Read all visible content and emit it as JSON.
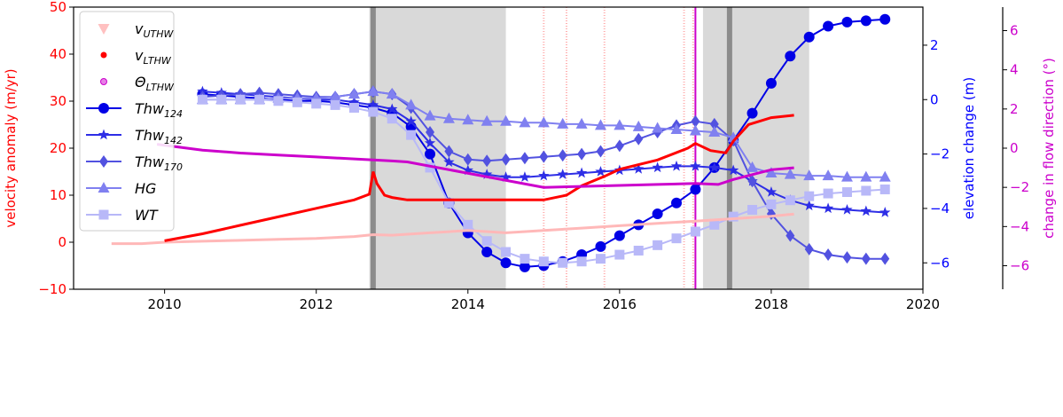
{
  "chart_data": {
    "type": "line",
    "x_axis": {
      "range": [
        2008.8,
        2020.0
      ],
      "ticks": [
        "2010",
        "2012",
        "2014",
        "2016",
        "2018",
        "2020"
      ],
      "tick_values": [
        2010,
        2012,
        2014,
        2016,
        2018,
        2020
      ]
    },
    "y_axis_left": {
      "label": "velocity anomaly (m/yr)",
      "range": [
        -10,
        50
      ],
      "ticks": [
        "−10",
        "0",
        "10",
        "20",
        "30",
        "40",
        "50"
      ],
      "tick_values": [
        -10,
        0,
        10,
        20,
        30,
        40,
        50
      ],
      "color": "#ff0000"
    },
    "y_axis_right1": {
      "label": "elevation change (m)",
      "range": [
        -6.97,
        3.4
      ],
      "ticks": [
        "−6",
        "−4",
        "−2",
        "0",
        "2"
      ],
      "tick_values": [
        -6,
        -4,
        -2,
        0,
        2
      ],
      "color": "#0000ff"
    },
    "y_axis_right2": {
      "label": "change in flow direction (°)",
      "range": [
        -7.2,
        7.2
      ],
      "ticks": [
        "−6",
        "−4",
        "−2",
        "0",
        "2",
        "4",
        "6"
      ],
      "tick_values": [
        -6,
        -4,
        -2,
        0,
        2,
        4,
        6
      ],
      "color": "#cc00cc"
    },
    "shaded_periods": [
      [
        2012.7,
        2014.5
      ],
      [
        2017.1,
        2018.5
      ]
    ],
    "dark_lines": [
      2012.75,
      2017.45
    ],
    "pink_spikes": [
      2015.0,
      2015.3,
      2015.8,
      2016.85,
      2016.97
    ],
    "magenta_spike": 2017.0,
    "legend": {
      "position": "upper left",
      "entries": [
        {
          "label": "v",
          "sub": "UTHW",
          "marker": "tri-down",
          "color": "#ffc0c0"
        },
        {
          "label": "v",
          "sub": "LTHW",
          "marker": "dot",
          "color": "#ff0000"
        },
        {
          "label": "Θ",
          "sub": "LTHW",
          "marker": "open-dot",
          "color": "#cc00cc"
        },
        {
          "label": "Thw",
          "sub": "124",
          "marker": "circle",
          "color": "#0000e6"
        },
        {
          "label": "Thw",
          "sub": "142",
          "marker": "star",
          "color": "#2e2ee6"
        },
        {
          "label": "Thw",
          "sub": "170",
          "marker": "diamond",
          "color": "#5252e0"
        },
        {
          "label": "HG",
          "sub": "",
          "marker": "triangle",
          "color": "#8080f0"
        },
        {
          "label": "WT",
          "sub": "",
          "marker": "square",
          "color": "#b8b8f8"
        }
      ]
    },
    "series": [
      {
        "name": "Thw124",
        "axis": "elevation",
        "color": "#0000e6",
        "marker": "circle",
        "x": [
          2010.5,
          2010.75,
          2011.0,
          2011.25,
          2011.5,
          2011.75,
          2012.0,
          2012.25,
          2012.5,
          2012.75,
          2013.0,
          2013.25,
          2013.5,
          2013.75,
          2014.0,
          2014.25,
          2014.5,
          2014.75,
          2015.0,
          2015.25,
          2015.5,
          2015.75,
          2016.0,
          2016.25,
          2016.5,
          2016.75,
          2017.0,
          2017.25,
          2017.5,
          2017.75,
          2018.0,
          2018.25,
          2018.5,
          2018.75,
          2019.0,
          2019.25,
          2019.5
        ],
        "y": [
          0.2,
          0.15,
          0.1,
          0.05,
          0.0,
          -0.05,
          -0.05,
          -0.1,
          -0.2,
          -0.3,
          -0.5,
          -1.0,
          -2.0,
          -3.8,
          -4.9,
          -5.6,
          -6.0,
          -6.15,
          -6.1,
          -5.95,
          -5.7,
          -5.4,
          -5.0,
          -4.6,
          -4.2,
          -3.8,
          -3.3,
          -2.5,
          -1.5,
          -0.5,
          0.6,
          1.6,
          2.3,
          2.7,
          2.85,
          2.9,
          2.95
        ]
      },
      {
        "name": "Thw142",
        "axis": "elevation",
        "color": "#2e2ee6",
        "marker": "star",
        "x": [
          2010.5,
          2010.75,
          2011.0,
          2011.25,
          2011.5,
          2011.75,
          2012.0,
          2012.25,
          2012.5,
          2012.75,
          2013.0,
          2013.25,
          2013.5,
          2013.75,
          2014.0,
          2014.25,
          2014.5,
          2014.75,
          2015.0,
          2015.25,
          2015.5,
          2015.75,
          2016.0,
          2016.25,
          2016.5,
          2016.75,
          2017.0,
          2017.25,
          2017.5,
          2017.75,
          2018.0,
          2018.25,
          2018.5,
          2018.75,
          2019.0,
          2019.25,
          2019.5
        ],
        "y": [
          0.3,
          0.25,
          0.2,
          0.15,
          0.1,
          0.05,
          0.0,
          0.0,
          -0.1,
          -0.2,
          -0.35,
          -0.8,
          -1.6,
          -2.3,
          -2.6,
          -2.75,
          -2.85,
          -2.85,
          -2.8,
          -2.75,
          -2.7,
          -2.65,
          -2.6,
          -2.55,
          -2.5,
          -2.45,
          -2.45,
          -2.5,
          -2.6,
          -3.0,
          -3.4,
          -3.7,
          -3.9,
          -4.0,
          -4.05,
          -4.1,
          -4.15
        ]
      },
      {
        "name": "Thw170",
        "axis": "elevation",
        "color": "#5252e0",
        "marker": "diamond",
        "x": [
          2010.5,
          2010.75,
          2011.0,
          2011.25,
          2011.5,
          2011.75,
          2012.0,
          2012.25,
          2012.5,
          2012.75,
          2013.0,
          2013.25,
          2013.5,
          2013.75,
          2014.0,
          2014.25,
          2014.5,
          2014.75,
          2015.0,
          2015.25,
          2015.5,
          2015.75,
          2016.0,
          2016.25,
          2016.5,
          2016.75,
          2017.0,
          2017.25,
          2017.5,
          2017.75,
          2018.0,
          2018.25,
          2018.5,
          2018.75,
          2019.0,
          2019.25,
          2019.5
        ],
        "y": [
          0.1,
          0.15,
          0.2,
          0.25,
          0.2,
          0.15,
          0.1,
          0.1,
          0.2,
          0.3,
          0.2,
          -0.3,
          -1.2,
          -1.9,
          -2.2,
          -2.25,
          -2.2,
          -2.15,
          -2.1,
          -2.05,
          -2.0,
          -1.9,
          -1.7,
          -1.45,
          -1.2,
          -0.95,
          -0.8,
          -0.9,
          -1.5,
          -3.0,
          -4.2,
          -5.0,
          -5.5,
          -5.7,
          -5.8,
          -5.85,
          -5.85
        ]
      },
      {
        "name": "HG",
        "axis": "elevation",
        "color": "#8080f0",
        "marker": "triangle",
        "x": [
          2010.5,
          2010.75,
          2011.0,
          2011.25,
          2011.5,
          2011.75,
          2012.0,
          2012.25,
          2012.5,
          2012.75,
          2013.0,
          2013.25,
          2013.5,
          2013.75,
          2014.0,
          2014.25,
          2014.5,
          2014.75,
          2015.0,
          2015.25,
          2015.5,
          2015.75,
          2016.0,
          2016.25,
          2016.5,
          2016.75,
          2017.0,
          2017.25,
          2017.5,
          2017.75,
          2018.0,
          2018.25,
          2018.5,
          2018.75,
          2019.0,
          2019.25,
          2019.5
        ],
        "y": [
          0.0,
          0.0,
          0.0,
          0.0,
          0.05,
          0.05,
          0.05,
          0.1,
          0.2,
          0.3,
          0.2,
          -0.2,
          -0.6,
          -0.7,
          -0.75,
          -0.8,
          -0.8,
          -0.85,
          -0.85,
          -0.9,
          -0.9,
          -0.95,
          -0.95,
          -1.0,
          -1.05,
          -1.1,
          -1.15,
          -1.2,
          -1.4,
          -2.5,
          -2.7,
          -2.75,
          -2.8,
          -2.8,
          -2.85,
          -2.85,
          -2.85
        ]
      },
      {
        "name": "WT",
        "axis": "elevation",
        "color": "#b8b8f8",
        "marker": "square",
        "x": [
          2010.5,
          2010.75,
          2011.0,
          2011.25,
          2011.5,
          2011.75,
          2012.0,
          2012.25,
          2012.5,
          2012.75,
          2013.0,
          2013.25,
          2013.5,
          2013.75,
          2014.0,
          2014.25,
          2014.5,
          2014.75,
          2015.0,
          2015.25,
          2015.5,
          2015.75,
          2016.0,
          2016.25,
          2016.5,
          2016.75,
          2017.0,
          2017.25,
          2017.5,
          2017.75,
          2018.0,
          2018.25,
          2018.5,
          2018.75,
          2019.0,
          2019.25,
          2019.5
        ],
        "y": [
          0.0,
          0.0,
          0.0,
          0.0,
          -0.05,
          -0.1,
          -0.15,
          -0.2,
          -0.3,
          -0.45,
          -0.7,
          -1.3,
          -2.5,
          -3.8,
          -4.6,
          -5.2,
          -5.6,
          -5.85,
          -5.95,
          -6.0,
          -5.95,
          -5.85,
          -5.7,
          -5.55,
          -5.35,
          -5.1,
          -4.85,
          -4.6,
          -4.3,
          -4.05,
          -3.85,
          -3.7,
          -3.55,
          -3.45,
          -3.4,
          -3.35,
          -3.3
        ]
      },
      {
        "name": "vUTHW",
        "axis": "velocity",
        "color": "#ffb8b8",
        "x": [
          2009.3,
          2009.7,
          2010.0,
          2010.5,
          2011.0,
          2011.5,
          2012.0,
          2012.5,
          2012.75,
          2013.0,
          2013.5,
          2014.0,
          2014.5,
          2015.0,
          2015.5,
          2016.0,
          2016.5,
          2017.0,
          2017.5,
          2018.0,
          2018.3
        ],
        "y": [
          -0.3,
          -0.3,
          0.0,
          0.2,
          0.4,
          0.6,
          0.8,
          1.2,
          1.6,
          1.5,
          2.0,
          2.5,
          2.0,
          2.5,
          3.0,
          3.5,
          4.0,
          4.5,
          5.0,
          5.5,
          6.0
        ]
      },
      {
        "name": "vLTHW",
        "axis": "velocity",
        "color": "#ff0000",
        "x": [
          2010.0,
          2010.5,
          2011.0,
          2011.5,
          2012.0,
          2012.5,
          2012.7,
          2012.75,
          2012.8,
          2012.9,
          2013.0,
          2013.2,
          2015.0,
          2015.3,
          2015.5,
          2015.8,
          2016.0,
          2016.5,
          2016.9,
          2017.0,
          2017.2,
          2017.4,
          2017.5,
          2017.7,
          2018.0,
          2018.3
        ],
        "y": [
          0.3,
          1.8,
          3.6,
          5.4,
          7.2,
          9.0,
          10.2,
          15.0,
          12.5,
          10.0,
          9.5,
          9.0,
          9.0,
          10.0,
          12.0,
          14.0,
          15.5,
          17.5,
          20.0,
          21.0,
          19.5,
          19.0,
          21.5,
          25.0,
          26.5,
          27.0
        ]
      },
      {
        "name": "ThetaLTHW",
        "axis": "flow",
        "color": "#cc00cc",
        "x": [
          2009.9,
          2010.5,
          2011.0,
          2011.5,
          2012.0,
          2012.5,
          2013.0,
          2013.2,
          2015.0,
          2015.5,
          2016.0,
          2016.5,
          2017.0,
          2017.3,
          2017.5,
          2017.8,
          2018.0,
          2018.3
        ],
        "y": [
          0.2,
          -0.1,
          -0.25,
          -0.35,
          -0.45,
          -0.55,
          -0.65,
          -0.7,
          -2.0,
          -1.95,
          -1.9,
          -1.85,
          -1.8,
          -1.85,
          -1.6,
          -1.3,
          -1.1,
          -1.0
        ]
      }
    ]
  }
}
